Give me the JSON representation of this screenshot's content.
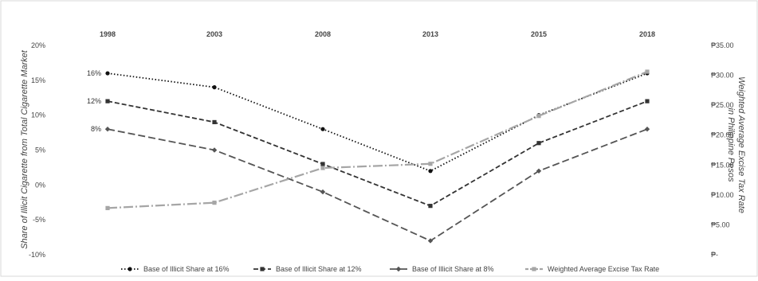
{
  "chart_data": {
    "type": "line",
    "categories": [
      "1998",
      "2003",
      "2008",
      "2013",
      "2015",
      "2018"
    ],
    "left_axis": {
      "label": "Share of Illicit Cigarette  from  Total Cigarette Market",
      "ticks": [
        "20%",
        "15%",
        "10%",
        "5%",
        "0%",
        "-5%",
        "-10%"
      ],
      "range": [
        -10,
        20
      ]
    },
    "right_axis": {
      "label_line1": "Weighted Average Excise Tax Rate",
      "label_line2": "in Philippine Pesos",
      "ticks": [
        "₱35.00",
        "₱30.00",
        "₱25.00",
        "₱20.00",
        "₱15.00",
        "₱10.00",
        "₱5.00",
        "₱-"
      ],
      "range": [
        0,
        35
      ]
    },
    "series": [
      {
        "name": "Base of Illicit Share at 16%",
        "axis": "left",
        "values": [
          16,
          14,
          8,
          2,
          10,
          16
        ],
        "color": "#111111",
        "dash": "1.5,2.5",
        "marker": "circle",
        "start_label": "16%"
      },
      {
        "name": "Base of Illicit Share at 12%",
        "axis": "left",
        "values": [
          12,
          9,
          3,
          -3,
          6,
          12
        ],
        "color": "#333333",
        "dash": "6,3",
        "marker": "square",
        "start_label": "12%"
      },
      {
        "name": "Base of Illicit Share at 8%",
        "axis": "left",
        "values": [
          8,
          5,
          -1,
          -8,
          2,
          8
        ],
        "color": "#555555",
        "dash": "9,4",
        "marker": "diamond",
        "start_label": "8%"
      },
      {
        "name": "Weighted Average Excise Tax Rate",
        "axis": "right",
        "values": [
          7.8,
          8.7,
          14.5,
          15.2,
          23.2,
          30.6
        ],
        "color": "#a6a6a6",
        "dash": "12,3,2,3",
        "marker": "square"
      }
    ],
    "grid": false,
    "legend_position": "bottom"
  }
}
